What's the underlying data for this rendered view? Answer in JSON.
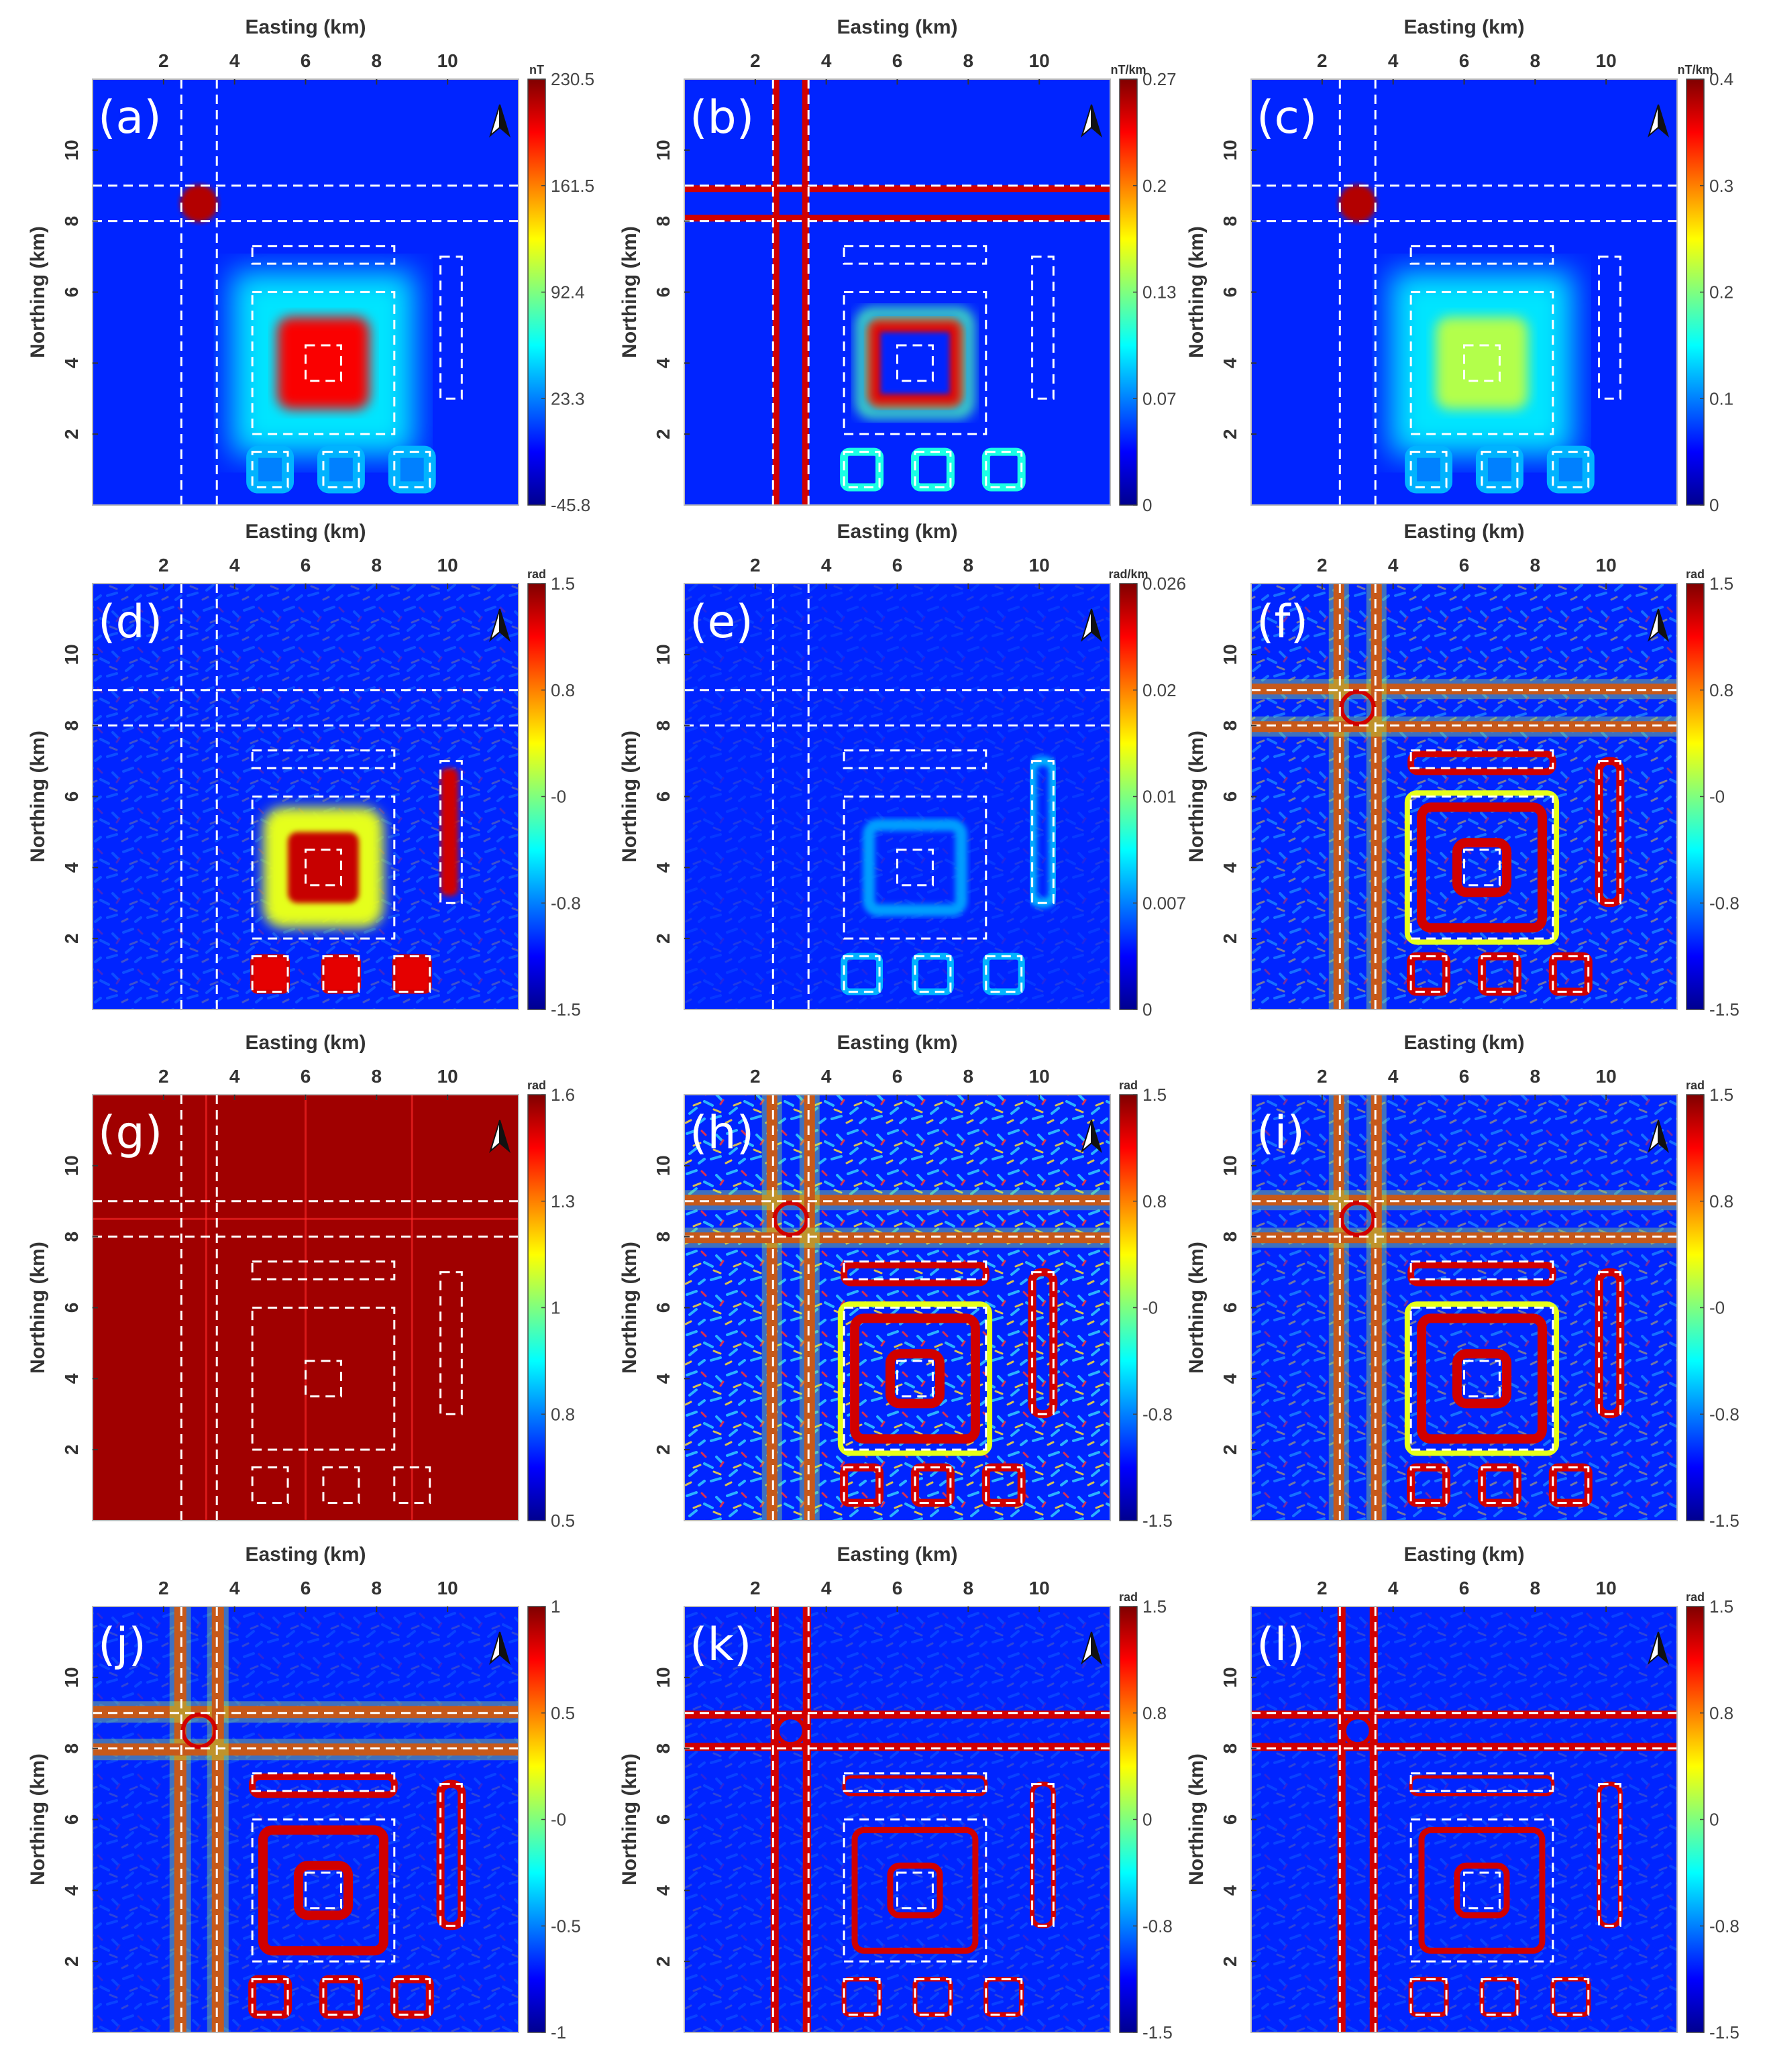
{
  "figure": {
    "panel_count": 12,
    "x_label": "Easting (km)",
    "y_label": "Northing (km)",
    "x_ticks": [
      "2",
      "4",
      "6",
      "8",
      "10"
    ],
    "y_ticks": [
      "2",
      "4",
      "6",
      "8",
      "10"
    ],
    "north_arrow_icon": "north-arrow-icon"
  },
  "chart_data": [
    {
      "id": "a",
      "type": "heatmap",
      "label": "(a)",
      "unit": "nT",
      "colorbar_ticks": [
        "230.5",
        "161.5",
        "92.4",
        "23.3",
        "-45.8"
      ],
      "clim": [
        -45.8,
        230.5
      ],
      "xlim": [
        0,
        12
      ],
      "ylim": [
        0,
        12
      ],
      "colormap": "jet",
      "pattern": "field",
      "dashed_outlines": true
    },
    {
      "id": "b",
      "type": "heatmap",
      "label": "(b)",
      "unit": "nT/km",
      "colorbar_ticks": [
        "0.27",
        "0.2",
        "0.13",
        "0.07",
        "0"
      ],
      "clim": [
        0,
        0.27
      ],
      "xlim": [
        0,
        12
      ],
      "ylim": [
        0,
        12
      ],
      "colormap": "jet",
      "pattern": "derivative",
      "dashed_outlines": true
    },
    {
      "id": "c",
      "type": "heatmap",
      "label": "(c)",
      "unit": "nT/km",
      "colorbar_ticks": [
        "0.4",
        "0.3",
        "0.2",
        "0.1",
        "0"
      ],
      "clim": [
        0,
        0.4
      ],
      "xlim": [
        0,
        12
      ],
      "ylim": [
        0,
        12
      ],
      "colormap": "jet",
      "pattern": "soft",
      "dashed_outlines": true
    },
    {
      "id": "d",
      "type": "heatmap",
      "label": "(d)",
      "unit": "rad",
      "colorbar_ticks": [
        "1.5",
        "0.8",
        "-0",
        "-0.8",
        "-1.5"
      ],
      "clim": [
        -1.5,
        1.5
      ],
      "xlim": [
        0,
        12
      ],
      "ylim": [
        0,
        12
      ],
      "colormap": "jet",
      "pattern": "tilt",
      "dashed_outlines": true
    },
    {
      "id": "e",
      "type": "heatmap",
      "label": "(e)",
      "unit": "rad/km",
      "colorbar_ticks": [
        "0.026",
        "0.02",
        "0.01",
        "0.007",
        "0"
      ],
      "clim": [
        0,
        0.026
      ],
      "xlim": [
        0,
        12
      ],
      "ylim": [
        0,
        12
      ],
      "colormap": "jet",
      "pattern": "low",
      "dashed_outlines": true
    },
    {
      "id": "f",
      "type": "heatmap",
      "label": "(f)",
      "unit": "rad",
      "colorbar_ticks": [
        "1.5",
        "0.8",
        "-0",
        "-0.8",
        "-1.5"
      ],
      "clim": [
        -1.5,
        1.5
      ],
      "xlim": [
        0,
        12
      ],
      "ylim": [
        0,
        12
      ],
      "colormap": "jet",
      "pattern": "rings",
      "dashed_outlines": true
    },
    {
      "id": "g",
      "type": "heatmap",
      "label": "(g)",
      "unit": "rad",
      "colorbar_ticks": [
        "1.6",
        "1.3",
        "1",
        "0.8",
        "0.5"
      ],
      "clim": [
        0.5,
        1.6
      ],
      "xlim": [
        0,
        12
      ],
      "ylim": [
        0,
        12
      ],
      "colormap": "jet",
      "pattern": "saturated",
      "dashed_outlines": true
    },
    {
      "id": "h",
      "type": "heatmap",
      "label": "(h)",
      "unit": "rad",
      "colorbar_ticks": [
        "1.5",
        "0.8",
        "-0",
        "-0.8",
        "-1.5"
      ],
      "clim": [
        -1.5,
        1.5
      ],
      "xlim": [
        0,
        12
      ],
      "ylim": [
        0,
        12
      ],
      "colormap": "jet",
      "pattern": "noisy-rings",
      "dashed_outlines": true
    },
    {
      "id": "i",
      "type": "heatmap",
      "label": "(i)",
      "unit": "rad",
      "colorbar_ticks": [
        "1.5",
        "0.8",
        "-0",
        "-0.8",
        "-1.5"
      ],
      "clim": [
        -1.5,
        1.5
      ],
      "xlim": [
        0,
        12
      ],
      "ylim": [
        0,
        12
      ],
      "colormap": "jet",
      "pattern": "rings",
      "dashed_outlines": true
    },
    {
      "id": "j",
      "type": "heatmap",
      "label": "(j)",
      "unit": "",
      "colorbar_ticks": [
        "1",
        "0.5",
        "-0",
        "-0.5",
        "-1"
      ],
      "clim": [
        -1,
        1
      ],
      "xlim": [
        0,
        12
      ],
      "ylim": [
        0,
        12
      ],
      "colormap": "jet",
      "pattern": "edges-wide",
      "dashed_outlines": true
    },
    {
      "id": "k",
      "type": "heatmap",
      "label": "(k)",
      "unit": "rad",
      "colorbar_ticks": [
        "1.5",
        "0.8",
        "0",
        "-0.8",
        "-1.5"
      ],
      "clim": [
        -1.5,
        1.5
      ],
      "xlim": [
        0,
        12
      ],
      "ylim": [
        0,
        12
      ],
      "colormap": "jet",
      "pattern": "edges-thin",
      "dashed_outlines": true
    },
    {
      "id": "l",
      "type": "heatmap",
      "label": "(l)",
      "unit": "rad",
      "colorbar_ticks": [
        "1.5",
        "0.8",
        "0",
        "-0.8",
        "-1.5"
      ],
      "clim": [
        -1.5,
        1.5
      ],
      "xlim": [
        0,
        12
      ],
      "ylim": [
        0,
        12
      ],
      "colormap": "jet",
      "pattern": "edges-thin",
      "dashed_outlines": true
    }
  ]
}
